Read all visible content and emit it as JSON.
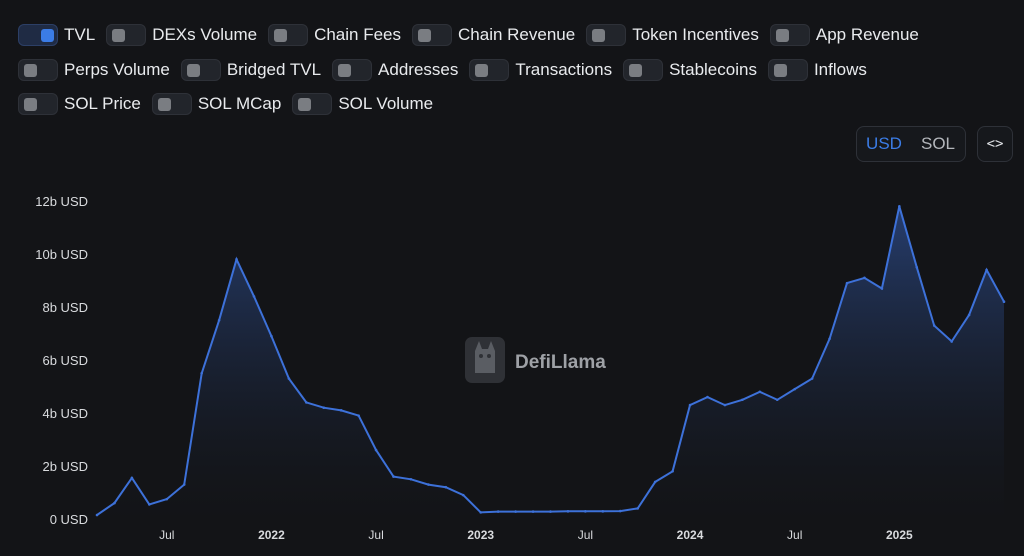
{
  "toggle_rows": [
    [
      {
        "label": "TVL",
        "on": true
      },
      {
        "label": "DEXs Volume",
        "on": false
      },
      {
        "label": "Chain Fees",
        "on": false
      },
      {
        "label": "Chain Revenue",
        "on": false
      },
      {
        "label": "Token Incentives",
        "on": false
      },
      {
        "label": "App Revenue",
        "on": false
      }
    ],
    [
      {
        "label": "Perps Volume",
        "on": false
      },
      {
        "label": "Bridged TVL",
        "on": false
      },
      {
        "label": "Addresses",
        "on": false
      },
      {
        "label": "Transactions",
        "on": false
      },
      {
        "label": "Stablecoins",
        "on": false
      },
      {
        "label": "Inflows",
        "on": false
      }
    ],
    [
      {
        "label": "SOL Price",
        "on": false
      },
      {
        "label": "SOL MCap",
        "on": false
      },
      {
        "label": "SOL Volume",
        "on": false
      }
    ]
  ],
  "currency": {
    "options": [
      "USD",
      "SOL"
    ],
    "selected": "USD"
  },
  "embed_label": "<>",
  "watermark": {
    "text": "DefiLlama",
    "icon": "llama-logo-icon"
  },
  "colors": {
    "line": "#3d71d9",
    "accent": "#3b7ce6",
    "background": "#131417"
  },
  "chart_data": {
    "type": "area",
    "series": [
      {
        "name": "TVL",
        "unit": "USD",
        "x": [
          "2021-03",
          "2021-04",
          "2021-05",
          "2021-06",
          "2021-07",
          "2021-08",
          "2021-09",
          "2021-10",
          "2021-11",
          "2021-12",
          "2022-01",
          "2022-02",
          "2022-03",
          "2022-04",
          "2022-05",
          "2022-06",
          "2022-07",
          "2022-08",
          "2022-09",
          "2022-10",
          "2022-11",
          "2022-12",
          "2023-01",
          "2023-02",
          "2023-03",
          "2023-04",
          "2023-05",
          "2023-06",
          "2023-07",
          "2023-08",
          "2023-09",
          "2023-10",
          "2023-11",
          "2023-12",
          "2024-01",
          "2024-02",
          "2024-03",
          "2024-04",
          "2024-05",
          "2024-06",
          "2024-07",
          "2024-08",
          "2024-09",
          "2024-10",
          "2024-11",
          "2024-12",
          "2025-01",
          "2025-02",
          "2025-03",
          "2025-04",
          "2025-05",
          "2025-06",
          "2025-07"
        ],
        "y": [
          0.15,
          0.6,
          1.55,
          0.55,
          0.75,
          1.3,
          5.5,
          7.5,
          9.8,
          8.4,
          6.9,
          5.3,
          4.4,
          4.2,
          4.1,
          3.9,
          2.6,
          1.6,
          1.5,
          1.3,
          1.2,
          0.9,
          0.25,
          0.28,
          0.28,
          0.28,
          0.28,
          0.29,
          0.29,
          0.29,
          0.3,
          0.4,
          1.4,
          1.8,
          4.3,
          4.6,
          4.3,
          4.5,
          4.8,
          4.5,
          4.9,
          5.3,
          6.8,
          8.9,
          9.1,
          8.7,
          11.8,
          9.5,
          7.3,
          6.7,
          7.7,
          9.4,
          8.2
        ]
      }
    ],
    "yticks": [
      "0 USD",
      "2b USD",
      "4b USD",
      "6b USD",
      "8b USD",
      "10b USD",
      "12b USD"
    ],
    "ylim": [
      0,
      12
    ],
    "xticks": [
      {
        "label": "Jul",
        "date": "2021-07",
        "bold": false
      },
      {
        "label": "2022",
        "date": "2022-01",
        "bold": true
      },
      {
        "label": "Jul",
        "date": "2022-07",
        "bold": false
      },
      {
        "label": "2023",
        "date": "2023-01",
        "bold": true
      },
      {
        "label": "Jul",
        "date": "2023-07",
        "bold": false
      },
      {
        "label": "2024",
        "date": "2024-01",
        "bold": true
      },
      {
        "label": "Jul",
        "date": "2024-07",
        "bold": false
      },
      {
        "label": "2025",
        "date": "2025-01",
        "bold": true
      }
    ],
    "xlim": [
      "2021-03",
      "2025-07"
    ],
    "grid": false,
    "legend": "none"
  }
}
